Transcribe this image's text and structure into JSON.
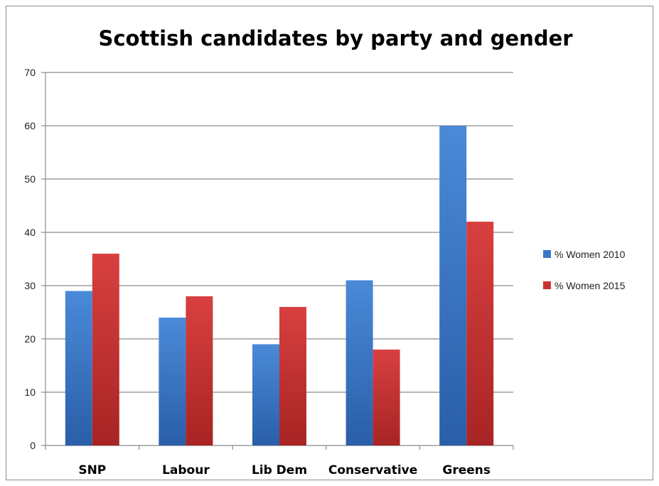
{
  "chart_data": {
    "type": "bar",
    "title": "Scottish candidates by party and gender",
    "categories": [
      "SNP",
      "Labour",
      "Lib Dem",
      "Conservative",
      "Greens"
    ],
    "series": [
      {
        "name": "% Women 2010",
        "values": [
          29,
          24,
          19,
          31,
          60
        ],
        "color": "#3a78c8"
      },
      {
        "name": "% Women 2015",
        "values": [
          36,
          28,
          26,
          18,
          42
        ],
        "color": "#c83232"
      }
    ],
    "xlabel": "",
    "ylabel": "",
    "ylim": [
      0,
      70
    ],
    "yticks": [
      0,
      10,
      20,
      30,
      40,
      50,
      60,
      70
    ],
    "grid": true,
    "legend_position": "right"
  }
}
